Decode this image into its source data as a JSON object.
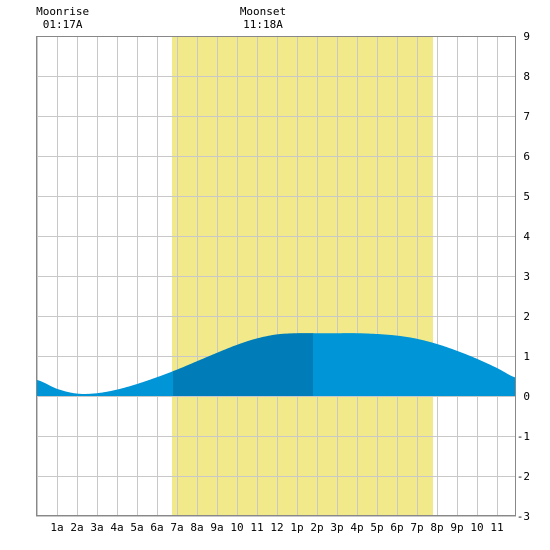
{
  "chart_data": {
    "type": "area",
    "x_unit_hint": "hour of day",
    "x_ticks": [
      "1a",
      "2a",
      "3a",
      "4a",
      "5a",
      "6a",
      "7a",
      "8a",
      "9a",
      "10",
      "11",
      "12",
      "1p",
      "2p",
      "3p",
      "4p",
      "5p",
      "6p",
      "7p",
      "8p",
      "9p",
      "10",
      "11"
    ],
    "xlim": [
      -0.05,
      23.95
    ],
    "ylim": [
      -3,
      9
    ],
    "y_ticks": [
      "-3",
      "-2",
      "-1",
      "0",
      "1",
      "2",
      "3",
      "4",
      "5",
      "6",
      "7",
      "8",
      "9"
    ],
    "grid": true,
    "daylight": {
      "start": 6.75,
      "end": 19.8
    },
    "moon_window": {
      "start": 6.8,
      "end": 13.8
    },
    "annotations": [
      {
        "label": "Moonrise",
        "time": "01:17A",
        "x": 1.28
      },
      {
        "label": "Moonset",
        "time": "11:18A",
        "x": 11.3
      }
    ],
    "series": [
      {
        "x": [
          0,
          1,
          2,
          3,
          4,
          5,
          6,
          7,
          8,
          9,
          10,
          11,
          12,
          13,
          14,
          15,
          16,
          17,
          18,
          19,
          20,
          21,
          22,
          23,
          24
        ],
        "y": [
          0.4,
          0.18,
          0.06,
          0.07,
          0.16,
          0.3,
          0.47,
          0.66,
          0.87,
          1.08,
          1.28,
          1.44,
          1.54,
          1.57,
          1.57,
          1.57,
          1.57,
          1.55,
          1.51,
          1.43,
          1.3,
          1.13,
          0.93,
          0.7,
          0.45
        ]
      }
    ],
    "colors": {
      "daylight": "#f2ea8a",
      "tide": "#0095d6",
      "tide_moon": "#007db8",
      "grid": "#c8c8c8",
      "frame": "#888888"
    }
  }
}
